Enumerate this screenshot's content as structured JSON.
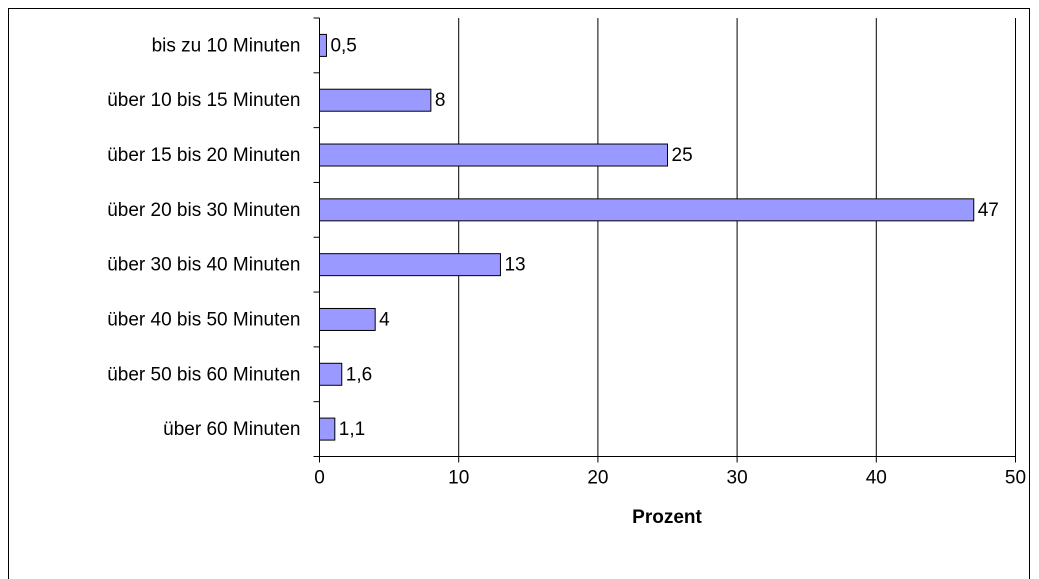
{
  "chart_data": {
    "type": "bar",
    "orientation": "horizontal",
    "x_label": "Prozent",
    "categories": [
      "bis zu 10 Minuten",
      "über 10 bis 15 Minuten",
      "über 15 bis 20 Minuten",
      "über 20 bis 30 Minuten",
      "über 30 bis 40 Minuten",
      "über 40 bis 50 Minuten",
      "über 50 bis 60 Minuten",
      "über 60 Minuten"
    ],
    "values": [
      0.5,
      8,
      25,
      47,
      13,
      4,
      1.6,
      1.1
    ],
    "value_labels": [
      "0,5",
      "8",
      "25",
      "47",
      "13",
      "4",
      "1,6",
      "1,1"
    ],
    "color": "#9999ff",
    "xlim": [
      0,
      50
    ],
    "xticks": [
      0,
      10,
      20,
      30,
      40,
      50
    ],
    "grid": true
  }
}
